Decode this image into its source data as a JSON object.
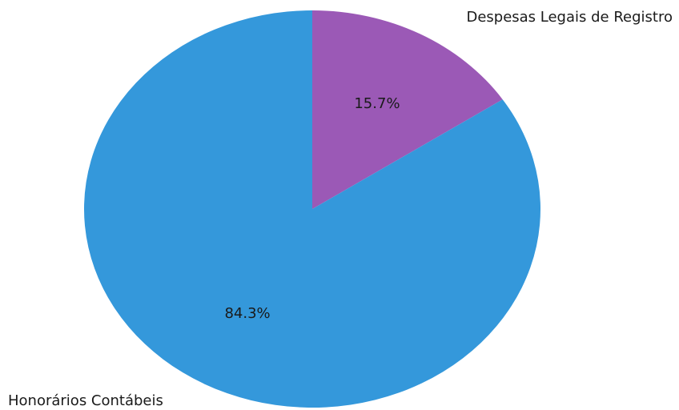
{
  "chart_data": {
    "type": "pie",
    "start_angle_deg": 90,
    "direction": "clockwise",
    "slices": [
      {
        "label": "Despesas Legais de Registro",
        "value": 15.7,
        "pct_label": "15.7%",
        "color": "#9b59b6"
      },
      {
        "label": "Honorários Contábeis",
        "value": 84.3,
        "pct_label": "84.3%",
        "color": "#3498db"
      }
    ]
  }
}
